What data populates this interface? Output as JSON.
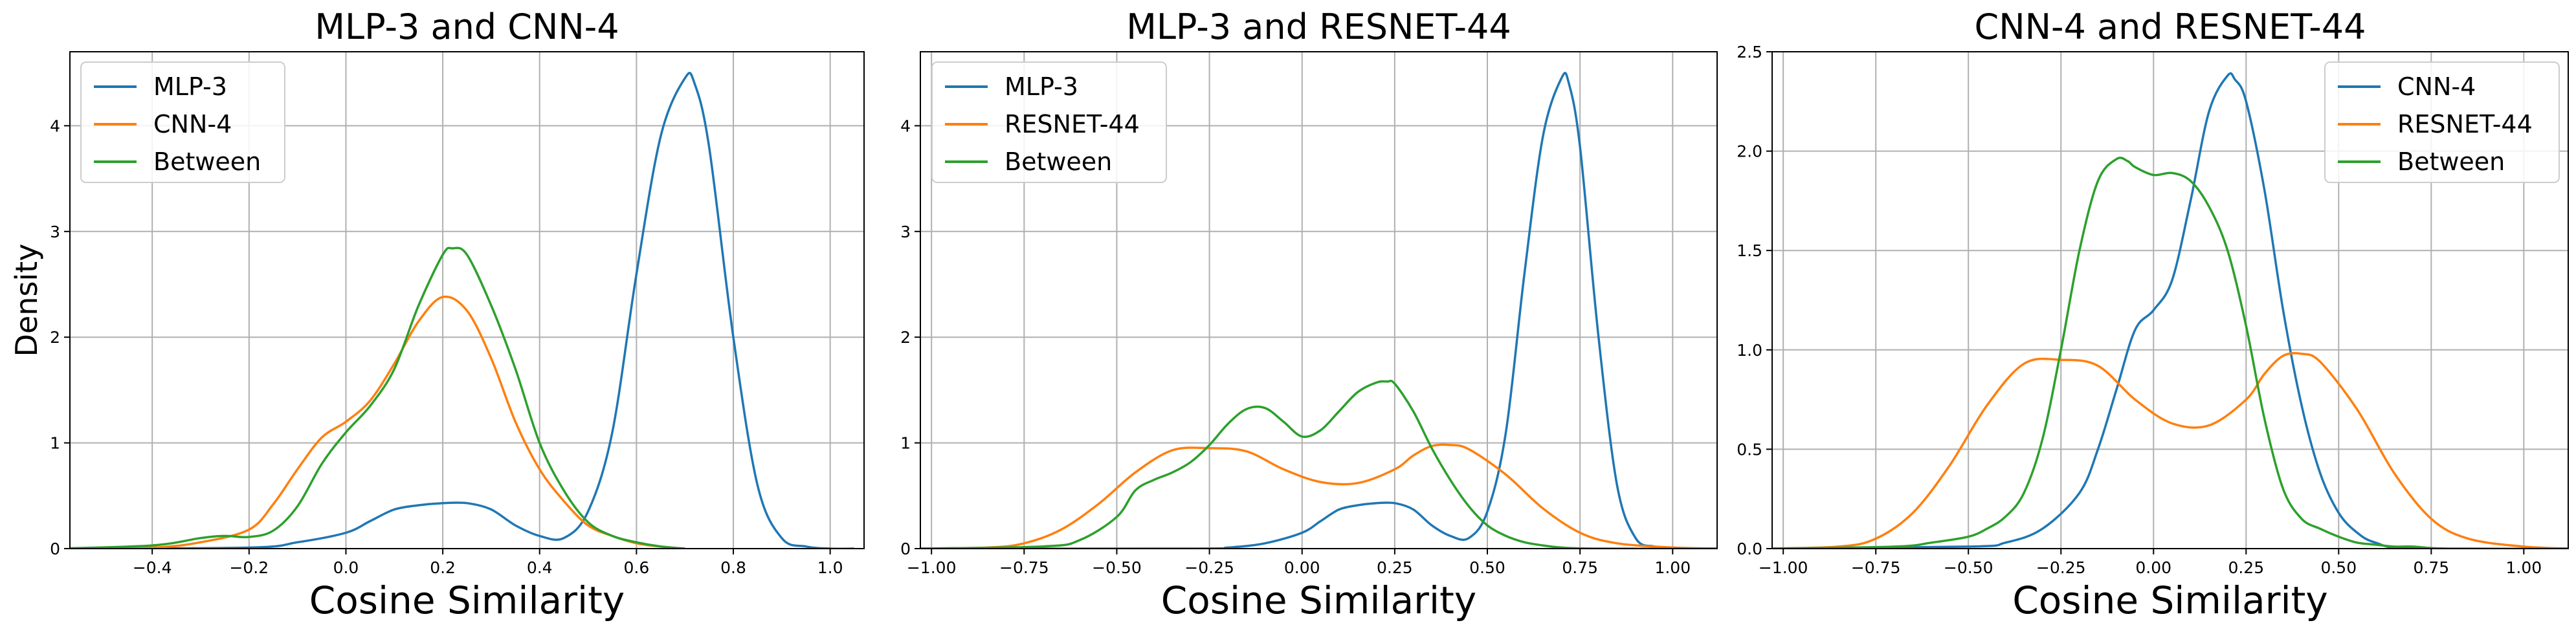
{
  "chart_data": [
    {
      "type": "line",
      "title": "MLP-3 and CNN-4",
      "xlabel": "Cosine Similarity",
      "ylabel": "Density",
      "xlim": [
        -0.57,
        1.07
      ],
      "ylim": [
        0,
        4.7
      ],
      "xticks": [
        -0.4,
        -0.2,
        0.0,
        0.2,
        0.4,
        0.6,
        0.8,
        1.0
      ],
      "xtick_labels": [
        "−0.4",
        "−0.2",
        "0.0",
        "0.2",
        "0.4",
        "0.6",
        "0.8",
        "1.0"
      ],
      "yticks": [
        0,
        1,
        2,
        3,
        4
      ],
      "ytick_labels": [
        "0",
        "1",
        "2",
        "3",
        "4"
      ],
      "grid": true,
      "legend_position": "upper-left",
      "series": [
        {
          "name": "MLP-3",
          "color": "#1f77b4",
          "x": [
            -0.6,
            -0.2,
            -0.1,
            0.0,
            0.05,
            0.1,
            0.15,
            0.2,
            0.25,
            0.3,
            0.35,
            0.4,
            0.45,
            0.5,
            0.55,
            0.6,
            0.65,
            0.7,
            0.72,
            0.75,
            0.8,
            0.85,
            0.9,
            0.95,
            1.0,
            1.05
          ],
          "y": [
            0,
            0.01,
            0.06,
            0.15,
            0.26,
            0.37,
            0.41,
            0.43,
            0.43,
            0.37,
            0.22,
            0.12,
            0.1,
            0.35,
            1.1,
            2.6,
            3.9,
            4.45,
            4.4,
            3.8,
            2.0,
            0.6,
            0.1,
            0.02,
            0,
            0
          ]
        },
        {
          "name": "CNN-4",
          "color": "#ff7f0e",
          "x": [
            -0.6,
            -0.4,
            -0.3,
            -0.2,
            -0.15,
            -0.1,
            -0.05,
            0.0,
            0.05,
            0.1,
            0.15,
            0.2,
            0.25,
            0.3,
            0.35,
            0.4,
            0.45,
            0.5,
            0.55,
            0.6,
            0.65,
            0.7
          ],
          "y": [
            0,
            0.01,
            0.06,
            0.18,
            0.42,
            0.75,
            1.05,
            1.2,
            1.4,
            1.75,
            2.15,
            2.38,
            2.25,
            1.8,
            1.2,
            0.75,
            0.45,
            0.22,
            0.12,
            0.05,
            0.02,
            0
          ]
        },
        {
          "name": "Between",
          "color": "#2ca02c",
          "x": [
            -0.6,
            -0.4,
            -0.3,
            -0.25,
            -0.2,
            -0.15,
            -0.1,
            -0.05,
            0.0,
            0.05,
            0.1,
            0.15,
            0.2,
            0.22,
            0.25,
            0.3,
            0.35,
            0.4,
            0.45,
            0.5,
            0.55,
            0.6,
            0.65,
            0.7
          ],
          "y": [
            0,
            0.03,
            0.1,
            0.12,
            0.11,
            0.17,
            0.4,
            0.8,
            1.1,
            1.35,
            1.7,
            2.3,
            2.78,
            2.84,
            2.78,
            2.3,
            1.7,
            1.0,
            0.55,
            0.25,
            0.12,
            0.06,
            0.02,
            0
          ]
        }
      ]
    },
    {
      "type": "line",
      "title": "MLP-3 and RESNET-44",
      "xlabel": "Cosine Similarity",
      "ylabel": "",
      "xlim": [
        -1.03,
        1.12
      ],
      "ylim": [
        0,
        4.7
      ],
      "xticks": [
        -1.0,
        -0.75,
        -0.5,
        -0.25,
        0.0,
        0.25,
        0.5,
        0.75,
        1.0
      ],
      "xtick_labels": [
        "−1.00",
        "−0.75",
        "−0.50",
        "−0.25",
        "0.00",
        "0.25",
        "0.50",
        "0.75",
        "1.00"
      ],
      "yticks": [
        0,
        1,
        2,
        3,
        4
      ],
      "ytick_labels": [
        "0",
        "1",
        "2",
        "3",
        "4"
      ],
      "grid": true,
      "legend_position": "upper-left",
      "series": [
        {
          "name": "MLP-3",
          "color": "#1f77b4",
          "x": [
            -1.05,
            -0.3,
            -0.2,
            -0.1,
            0.0,
            0.05,
            0.1,
            0.15,
            0.2,
            0.25,
            0.3,
            0.35,
            0.4,
            0.45,
            0.5,
            0.55,
            0.6,
            0.65,
            0.7,
            0.72,
            0.75,
            0.8,
            0.85,
            0.9,
            0.95,
            1.0,
            1.12
          ],
          "y": [
            0,
            0,
            0.01,
            0.05,
            0.15,
            0.26,
            0.37,
            0.41,
            0.43,
            0.43,
            0.37,
            0.22,
            0.12,
            0.1,
            0.35,
            1.1,
            2.6,
            3.9,
            4.45,
            4.4,
            3.8,
            2.0,
            0.6,
            0.1,
            0.02,
            0,
            0
          ]
        },
        {
          "name": "RESNET-44",
          "color": "#ff7f0e",
          "x": [
            -1.05,
            -0.85,
            -0.75,
            -0.65,
            -0.55,
            -0.45,
            -0.35,
            -0.25,
            -0.15,
            -0.05,
            0.05,
            0.15,
            0.25,
            0.3,
            0.35,
            0.4,
            0.45,
            0.55,
            0.65,
            0.75,
            0.85,
            1.0,
            1.12
          ],
          "y": [
            0,
            0.01,
            0.05,
            0.18,
            0.42,
            0.72,
            0.93,
            0.95,
            0.92,
            0.75,
            0.63,
            0.62,
            0.75,
            0.88,
            0.97,
            0.98,
            0.94,
            0.7,
            0.38,
            0.15,
            0.05,
            0.01,
            0
          ]
        },
        {
          "name": "Between",
          "color": "#2ca02c",
          "x": [
            -1.05,
            -0.7,
            -0.6,
            -0.5,
            -0.45,
            -0.4,
            -0.35,
            -0.3,
            -0.25,
            -0.2,
            -0.15,
            -0.1,
            -0.05,
            0.0,
            0.05,
            0.1,
            0.15,
            0.2,
            0.23,
            0.25,
            0.3,
            0.35,
            0.4,
            0.45,
            0.5,
            0.55,
            0.6,
            0.65,
            0.7,
            0.8,
            1.12
          ],
          "y": [
            0,
            0.02,
            0.08,
            0.3,
            0.55,
            0.65,
            0.72,
            0.82,
            0.98,
            1.18,
            1.32,
            1.33,
            1.2,
            1.06,
            1.12,
            1.3,
            1.48,
            1.57,
            1.58,
            1.56,
            1.3,
            0.95,
            0.65,
            0.4,
            0.22,
            0.12,
            0.06,
            0.03,
            0.01,
            0,
            0
          ]
        }
      ]
    },
    {
      "type": "line",
      "title": "CNN-4 and RESNET-44",
      "xlabel": "Cosine Similarity",
      "ylabel": "",
      "xlim": [
        -1.03,
        1.12
      ],
      "ylim": [
        0,
        2.5
      ],
      "xticks": [
        -1.0,
        -0.75,
        -0.5,
        -0.25,
        0.0,
        0.25,
        0.5,
        0.75,
        1.0
      ],
      "xtick_labels": [
        "−1.00",
        "−0.75",
        "−0.50",
        "−0.25",
        "0.00",
        "0.25",
        "0.50",
        "0.75",
        "1.00"
      ],
      "yticks": [
        0.0,
        0.5,
        1.0,
        1.5,
        2.0,
        2.5
      ],
      "ytick_labels": [
        "0.0",
        "0.5",
        "1.0",
        "1.5",
        "2.0",
        "2.5"
      ],
      "grid": true,
      "legend_position": "upper-right",
      "series": [
        {
          "name": "CNN-4",
          "color": "#1f77b4",
          "x": [
            -1.05,
            -0.5,
            -0.4,
            -0.3,
            -0.2,
            -0.15,
            -0.1,
            -0.05,
            0.0,
            0.05,
            0.1,
            0.15,
            0.2,
            0.22,
            0.25,
            0.3,
            0.35,
            0.4,
            0.45,
            0.5,
            0.55,
            0.6,
            0.7,
            1.12
          ],
          "y": [
            0,
            0.01,
            0.03,
            0.1,
            0.28,
            0.5,
            0.8,
            1.1,
            1.2,
            1.35,
            1.75,
            2.2,
            2.38,
            2.36,
            2.25,
            1.8,
            1.2,
            0.72,
            0.38,
            0.18,
            0.08,
            0.03,
            0,
            0
          ]
        },
        {
          "name": "RESNET-44",
          "color": "#ff7f0e",
          "x": [
            -1.05,
            -0.85,
            -0.75,
            -0.65,
            -0.55,
            -0.45,
            -0.35,
            -0.25,
            -0.15,
            -0.05,
            0.05,
            0.15,
            0.25,
            0.3,
            0.35,
            0.4,
            0.45,
            0.55,
            0.65,
            0.75,
            0.85,
            1.0,
            1.12
          ],
          "y": [
            0,
            0.01,
            0.05,
            0.18,
            0.42,
            0.72,
            0.93,
            0.95,
            0.92,
            0.75,
            0.63,
            0.62,
            0.75,
            0.88,
            0.97,
            0.98,
            0.94,
            0.7,
            0.38,
            0.15,
            0.05,
            0.01,
            0
          ]
        },
        {
          "name": "Between",
          "color": "#2ca02c",
          "x": [
            -1.05,
            -0.7,
            -0.6,
            -0.5,
            -0.45,
            -0.4,
            -0.35,
            -0.3,
            -0.25,
            -0.2,
            -0.15,
            -0.1,
            -0.07,
            -0.05,
            0.0,
            0.05,
            0.1,
            0.15,
            0.2,
            0.25,
            0.3,
            0.35,
            0.4,
            0.45,
            0.5,
            0.55,
            0.6,
            0.65,
            0.7,
            0.8,
            1.12
          ],
          "y": [
            0,
            0.01,
            0.03,
            0.06,
            0.1,
            0.16,
            0.28,
            0.55,
            1.0,
            1.5,
            1.85,
            1.96,
            1.95,
            1.92,
            1.88,
            1.89,
            1.85,
            1.72,
            1.5,
            1.12,
            0.65,
            0.3,
            0.15,
            0.1,
            0.06,
            0.03,
            0.02,
            0.01,
            0.01,
            0,
            0
          ]
        }
      ]
    }
  ]
}
